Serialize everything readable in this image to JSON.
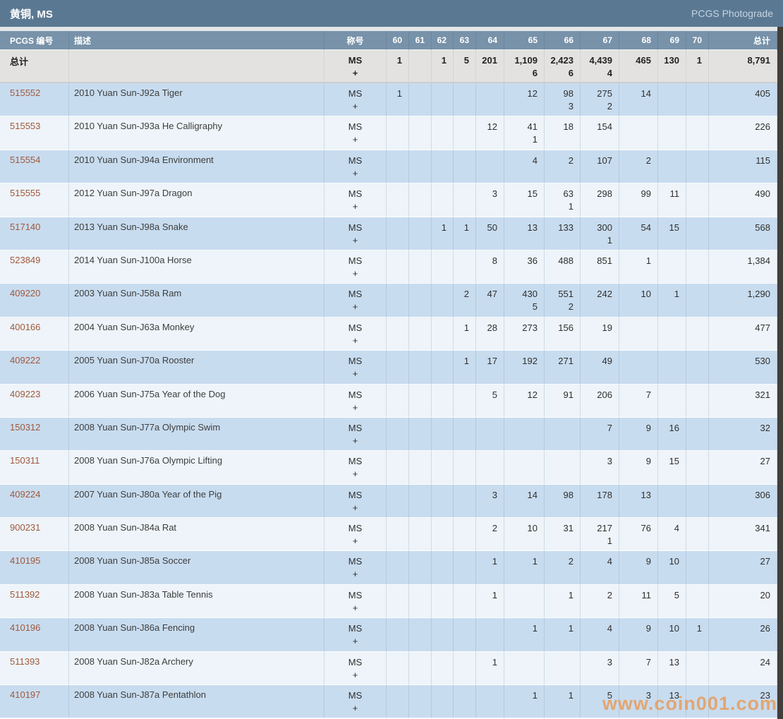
{
  "page": {
    "title": "黄铜, MS",
    "photograde_link": "PCGS Photograde"
  },
  "watermark": "www.coin001.com",
  "colors": {
    "titlebar": "#5b7893",
    "header": "#7792a9",
    "row_blue": "#c8dcef",
    "row_white": "#eef4f9",
    "totals_bg": "#e3e2e1",
    "link": "#a0583c",
    "watermark": "#ed9242",
    "right_strip": "#433e3a"
  },
  "table": {
    "headers": {
      "pcgs": "PCGS 编号",
      "desc": "描述",
      "grade": "称号",
      "total": "总计"
    },
    "grade_keys": [
      "60",
      "61",
      "62",
      "63",
      "64",
      "65",
      "66",
      "67",
      "68",
      "69",
      "70"
    ],
    "grade_line1": "MS",
    "grade_line2": "+",
    "totals": {
      "label": "总计",
      "ms": {
        "60": "1",
        "62": "1",
        "63": "5",
        "64": "201",
        "65": "1,109",
        "66": "2,423",
        "67": "4,439",
        "68": "465",
        "69": "130",
        "70": "1"
      },
      "plus": {
        "65": "6",
        "66": "6",
        "67": "4"
      },
      "total": "8,791"
    },
    "rows": [
      {
        "id": "515552",
        "desc": "2010 Yuan Sun-J92a Tiger",
        "ms": {
          "60": "1",
          "65": "12",
          "66": "98",
          "67": "275",
          "68": "14"
        },
        "plus": {
          "66": "3",
          "67": "2"
        },
        "total": "405"
      },
      {
        "id": "515553",
        "desc": "2010 Yuan Sun-J93a He Calligraphy",
        "ms": {
          "64": "12",
          "65": "41",
          "66": "18",
          "67": "154"
        },
        "plus": {
          "65": "1"
        },
        "total": "226"
      },
      {
        "id": "515554",
        "desc": "2010 Yuan Sun-J94a Environment",
        "ms": {
          "65": "4",
          "66": "2",
          "67": "107",
          "68": "2"
        },
        "plus": {},
        "total": "115"
      },
      {
        "id": "515555",
        "desc": "2012 Yuan Sun-J97a Dragon",
        "ms": {
          "64": "3",
          "65": "15",
          "66": "63",
          "67": "298",
          "68": "99",
          "69": "11"
        },
        "plus": {
          "66": "1"
        },
        "total": "490"
      },
      {
        "id": "517140",
        "desc": "2013 Yuan Sun-J98a Snake",
        "ms": {
          "62": "1",
          "63": "1",
          "64": "50",
          "65": "13",
          "66": "133",
          "67": "300",
          "68": "54",
          "69": "15"
        },
        "plus": {
          "67": "1"
        },
        "total": "568"
      },
      {
        "id": "523849",
        "desc": "2014 Yuan Sun-J100a Horse",
        "ms": {
          "64": "8",
          "65": "36",
          "66": "488",
          "67": "851",
          "68": "1"
        },
        "plus": {},
        "total": "1,384"
      },
      {
        "id": "409220",
        "desc": "2003 Yuan Sun-J58a Ram",
        "ms": {
          "63": "2",
          "64": "47",
          "65": "430",
          "66": "551",
          "67": "242",
          "68": "10",
          "69": "1"
        },
        "plus": {
          "65": "5",
          "66": "2"
        },
        "total": "1,290"
      },
      {
        "id": "400166",
        "desc": "2004 Yuan Sun-J63a Monkey",
        "ms": {
          "63": "1",
          "64": "28",
          "65": "273",
          "66": "156",
          "67": "19"
        },
        "plus": {},
        "total": "477"
      },
      {
        "id": "409222",
        "desc": "2005 Yuan Sun-J70a Rooster",
        "ms": {
          "63": "1",
          "64": "17",
          "65": "192",
          "66": "271",
          "67": "49"
        },
        "plus": {},
        "total": "530"
      },
      {
        "id": "409223",
        "desc": "2006 Yuan Sun-J75a Year of the Dog",
        "ms": {
          "64": "5",
          "65": "12",
          "66": "91",
          "67": "206",
          "68": "7"
        },
        "plus": {},
        "total": "321"
      },
      {
        "id": "150312",
        "desc": "2008 Yuan Sun-J77a Olympic Swim",
        "ms": {
          "67": "7",
          "68": "9",
          "69": "16"
        },
        "plus": {},
        "total": "32"
      },
      {
        "id": "150311",
        "desc": "2008 Yuan Sun-J76a Olympic Lifting",
        "ms": {
          "67": "3",
          "68": "9",
          "69": "15"
        },
        "plus": {},
        "total": "27"
      },
      {
        "id": "409224",
        "desc": "2007 Yuan Sun-J80a Year of the Pig",
        "ms": {
          "64": "3",
          "65": "14",
          "66": "98",
          "67": "178",
          "68": "13"
        },
        "plus": {},
        "total": "306"
      },
      {
        "id": "900231",
        "desc": "2008 Yuan Sun-J84a Rat",
        "ms": {
          "64": "2",
          "65": "10",
          "66": "31",
          "67": "217",
          "68": "76",
          "69": "4"
        },
        "plus": {
          "67": "1"
        },
        "total": "341"
      },
      {
        "id": "410195",
        "desc": "2008 Yuan Sun-J85a Soccer",
        "ms": {
          "64": "1",
          "65": "1",
          "66": "2",
          "67": "4",
          "68": "9",
          "69": "10"
        },
        "plus": {},
        "total": "27"
      },
      {
        "id": "511392",
        "desc": "2008 Yuan Sun-J83a Table Tennis",
        "ms": {
          "64": "1",
          "66": "1",
          "67": "2",
          "68": "11",
          "69": "5"
        },
        "plus": {},
        "total": "20"
      },
      {
        "id": "410196",
        "desc": "2008 Yuan Sun-J86a Fencing",
        "ms": {
          "65": "1",
          "66": "1",
          "67": "4",
          "68": "9",
          "69": "10",
          "70": "1"
        },
        "plus": {},
        "total": "26"
      },
      {
        "id": "511393",
        "desc": "2008 Yuan Sun-J82a Archery",
        "ms": {
          "64": "1",
          "67": "3",
          "68": "7",
          "69": "13"
        },
        "plus": {},
        "total": "24"
      },
      {
        "id": "410197",
        "desc": "2008 Yuan Sun-J87a Pentathlon",
        "ms": {
          "65": "1",
          "66": "1",
          "67": "5",
          "68": "3",
          "69": "13"
        },
        "plus": {},
        "total": "23"
      }
    ]
  }
}
